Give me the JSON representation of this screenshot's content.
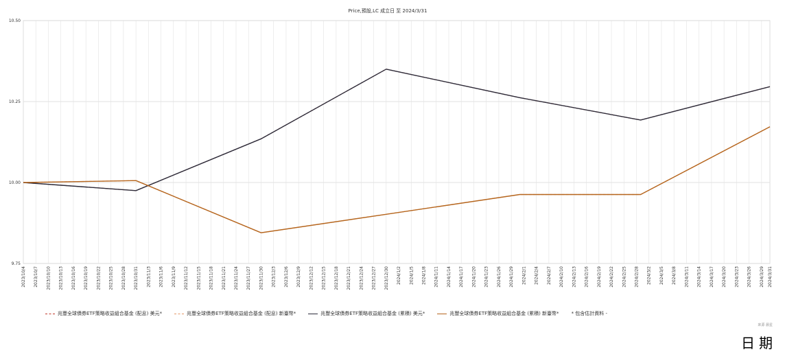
{
  "chart_data": {
    "type": "line",
    "title": "Price,預設,LC 成立日 至 2024/3/31",
    "xlabel": "日期",
    "ylabel": "",
    "ylim": [
      9.75,
      10.5
    ],
    "yticks": [
      "9.75",
      "10.00",
      "10.25",
      "10.50"
    ],
    "grid": true,
    "legend_placement": "bottom",
    "x_ticks": [
      "2023/10/4",
      "2023/10/7",
      "2023/10/10",
      "2023/10/13",
      "2023/10/16",
      "2023/10/19",
      "2023/10/22",
      "2023/10/25",
      "2023/10/28",
      "2023/10/31",
      "2023/11/3",
      "2023/11/6",
      "2023/11/9",
      "2023/11/12",
      "2023/11/15",
      "2023/11/18",
      "2023/11/21",
      "2023/11/24",
      "2023/11/27",
      "2023/11/30",
      "2023/12/3",
      "2023/12/6",
      "2023/12/9",
      "2023/12/12",
      "2023/12/15",
      "2023/12/18",
      "2023/12/21",
      "2023/12/24",
      "2023/12/27",
      "2023/12/30",
      "2024/1/2",
      "2024/1/5",
      "2024/1/8",
      "2024/1/11",
      "2024/1/14",
      "2024/1/17",
      "2024/1/20",
      "2024/1/23",
      "2024/1/26",
      "2024/1/29",
      "2024/2/1",
      "2024/2/4",
      "2024/2/7",
      "2024/2/10",
      "2024/2/13",
      "2024/2/16",
      "2024/2/19",
      "2024/2/22",
      "2024/2/25",
      "2024/2/28",
      "2024/3/2",
      "2024/3/5",
      "2024/3/8",
      "2024/3/11",
      "2024/3/14",
      "2024/3/17",
      "2024/3/20",
      "2024/3/23",
      "2024/3/26",
      "2024/3/29",
      "2024/3/31"
    ],
    "x": [
      "2023/10/4",
      "2023/10/31",
      "2023/11/30",
      "2023/12/30",
      "2024/1/31",
      "2024/2/29",
      "2024/3/31"
    ],
    "series": [
      {
        "name": "兆豐全球債券ETF策略收益組合基金 (配息) 美元*",
        "color": "#c0392b",
        "dash": true,
        "values": [
          10.0,
          9.975,
          10.135,
          10.35,
          10.262,
          10.193,
          10.296
        ]
      },
      {
        "name": "兆豐全球債券ETF策略收益組合基金 (配息) 新臺幣*",
        "color": "#e59866",
        "dash": true,
        "values": [
          10.0,
          10.006,
          9.845,
          9.902,
          9.963,
          9.963,
          10.172
        ]
      },
      {
        "name": "兆豐全球債券ETF策略收益組合基金 (累積) 美元*",
        "color": "#2c2c3a",
        "dash": false,
        "values": [
          10.0,
          9.975,
          10.135,
          10.35,
          10.262,
          10.193,
          10.296
        ]
      },
      {
        "name": "兆豐全球債券ETF策略收益組合基金 (累積) 新臺幣*",
        "color": "#b5651d",
        "dash": false,
        "values": [
          10.0,
          10.006,
          9.845,
          9.902,
          9.963,
          9.963,
          10.172
        ]
      }
    ],
    "legend_note": "* 包含估計資料 -"
  },
  "footer": {
    "source": "來源 晨星",
    "corner_label": "日期"
  }
}
